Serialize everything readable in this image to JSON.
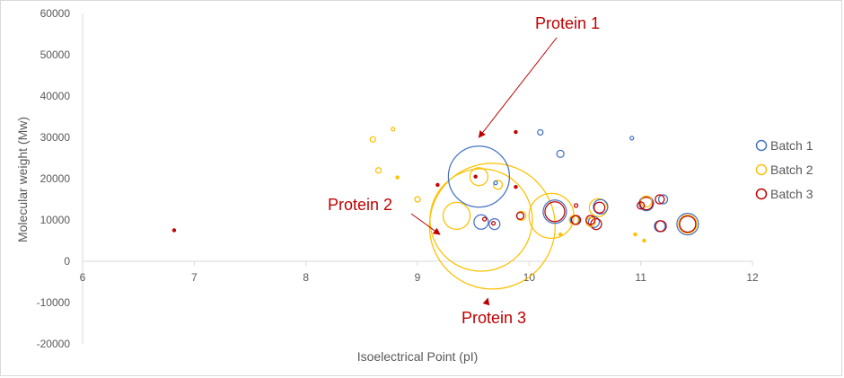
{
  "chart_data": {
    "type": "bubble",
    "xlabel": "Isoelectrical Point (pI)",
    "ylabel": "Molecular weight (Mw)",
    "xlim": [
      6,
      12
    ],
    "ylim": [
      -20000,
      60000
    ],
    "xticks": [
      6,
      7,
      8,
      9,
      10,
      11,
      12
    ],
    "yticks": [
      -20000,
      -10000,
      0,
      10000,
      20000,
      30000,
      40000,
      50000,
      60000
    ],
    "x_tick_labels": [
      "6",
      "7",
      "8",
      "9",
      "10",
      "11",
      "12"
    ],
    "y_tick_labels": [
      "-20000",
      "-10000",
      "0",
      "10000",
      "20000",
      "30000",
      "40000",
      "50000",
      "60000"
    ],
    "grid": false,
    "legend_position": "right",
    "colors": {
      "Batch 1": "#4472c4",
      "Batch 2": "#ffc000",
      "Batch 3": "#c00000"
    },
    "series": [
      {
        "name": "Batch 1",
        "points": [
          {
            "x": 9.55,
            "y": 20500,
            "size": 34
          },
          {
            "x": 10.1,
            "y": 31200,
            "size": 3
          },
          {
            "x": 10.28,
            "y": 26000,
            "size": 4
          },
          {
            "x": 10.92,
            "y": 29800,
            "size": 2
          },
          {
            "x": 9.7,
            "y": 19000,
            "size": 2
          },
          {
            "x": 9.57,
            "y": 9500,
            "size": 8
          },
          {
            "x": 9.69,
            "y": 9000,
            "size": 6
          },
          {
            "x": 9.92,
            "y": 11000,
            "size": 4
          },
          {
            "x": 10.23,
            "y": 12000,
            "size": 13
          },
          {
            "x": 10.41,
            "y": 10000,
            "size": 5
          },
          {
            "x": 10.64,
            "y": 13200,
            "size": 8
          },
          {
            "x": 10.58,
            "y": 9500,
            "size": 6
          },
          {
            "x": 11.05,
            "y": 14000,
            "size": 8
          },
          {
            "x": 11.17,
            "y": 8500,
            "size": 6
          },
          {
            "x": 11.2,
            "y": 15000,
            "size": 5
          },
          {
            "x": 11.42,
            "y": 9000,
            "size": 12
          }
        ]
      },
      {
        "name": "Batch 2",
        "points": [
          {
            "x": 8.6,
            "y": 29500,
            "size": 3
          },
          {
            "x": 8.78,
            "y": 32000,
            "size": 2
          },
          {
            "x": 8.65,
            "y": 22000,
            "size": 3
          },
          {
            "x": 8.82,
            "y": 20300,
            "size": 1
          },
          {
            "x": 9.0,
            "y": 15000,
            "size": 3
          },
          {
            "x": 9.55,
            "y": 20500,
            "size": 10
          },
          {
            "x": 9.57,
            "y": 10000,
            "size": 57
          },
          {
            "x": 9.67,
            "y": 8500,
            "size": 70
          },
          {
            "x": 9.35,
            "y": 11000,
            "size": 15
          },
          {
            "x": 9.72,
            "y": 18500,
            "size": 5
          },
          {
            "x": 9.93,
            "y": 11000,
            "size": 5
          },
          {
            "x": 10.2,
            "y": 11000,
            "size": 25
          },
          {
            "x": 10.28,
            "y": 6500,
            "size": 1
          },
          {
            "x": 10.4,
            "y": 10000,
            "size": 5
          },
          {
            "x": 10.62,
            "y": 13000,
            "size": 10
          },
          {
            "x": 10.55,
            "y": 9500,
            "size": 5
          },
          {
            "x": 10.95,
            "y": 6500,
            "size": 1
          },
          {
            "x": 11.03,
            "y": 5000,
            "size": 1
          },
          {
            "x": 11.05,
            "y": 14500,
            "size": 6
          },
          {
            "x": 11.42,
            "y": 9000,
            "size": 10
          }
        ]
      },
      {
        "name": "Batch 3",
        "points": [
          {
            "x": 6.82,
            "y": 7500,
            "size": 1
          },
          {
            "x": 9.18,
            "y": 18500,
            "size": 1
          },
          {
            "x": 9.52,
            "y": 20500,
            "size": 1
          },
          {
            "x": 9.88,
            "y": 31300,
            "size": 1
          },
          {
            "x": 9.88,
            "y": 18000,
            "size": 1
          },
          {
            "x": 9.6,
            "y": 10200,
            "size": 2
          },
          {
            "x": 9.68,
            "y": 9200,
            "size": 2
          },
          {
            "x": 9.92,
            "y": 11000,
            "size": 4
          },
          {
            "x": 10.23,
            "y": 12000,
            "size": 11
          },
          {
            "x": 10.42,
            "y": 13500,
            "size": 2
          },
          {
            "x": 10.42,
            "y": 10000,
            "size": 5
          },
          {
            "x": 10.63,
            "y": 13000,
            "size": 6
          },
          {
            "x": 10.55,
            "y": 10000,
            "size": 5
          },
          {
            "x": 10.6,
            "y": 9000,
            "size": 6
          },
          {
            "x": 11.05,
            "y": 14000,
            "size": 7
          },
          {
            "x": 11.0,
            "y": 13500,
            "size": 4
          },
          {
            "x": 11.18,
            "y": 8500,
            "size": 6
          },
          {
            "x": 11.17,
            "y": 15000,
            "size": 5
          },
          {
            "x": 11.42,
            "y": 9000,
            "size": 9
          }
        ]
      }
    ],
    "annotations": [
      {
        "text": "Protein 1",
        "target": {
          "x": 9.55,
          "y": 30000
        }
      },
      {
        "text": "Protein 2",
        "target": {
          "x": 9.2,
          "y": 6500
        }
      },
      {
        "text": "Protein 3",
        "target": {
          "x": 9.63,
          "y": -9000
        }
      }
    ]
  }
}
